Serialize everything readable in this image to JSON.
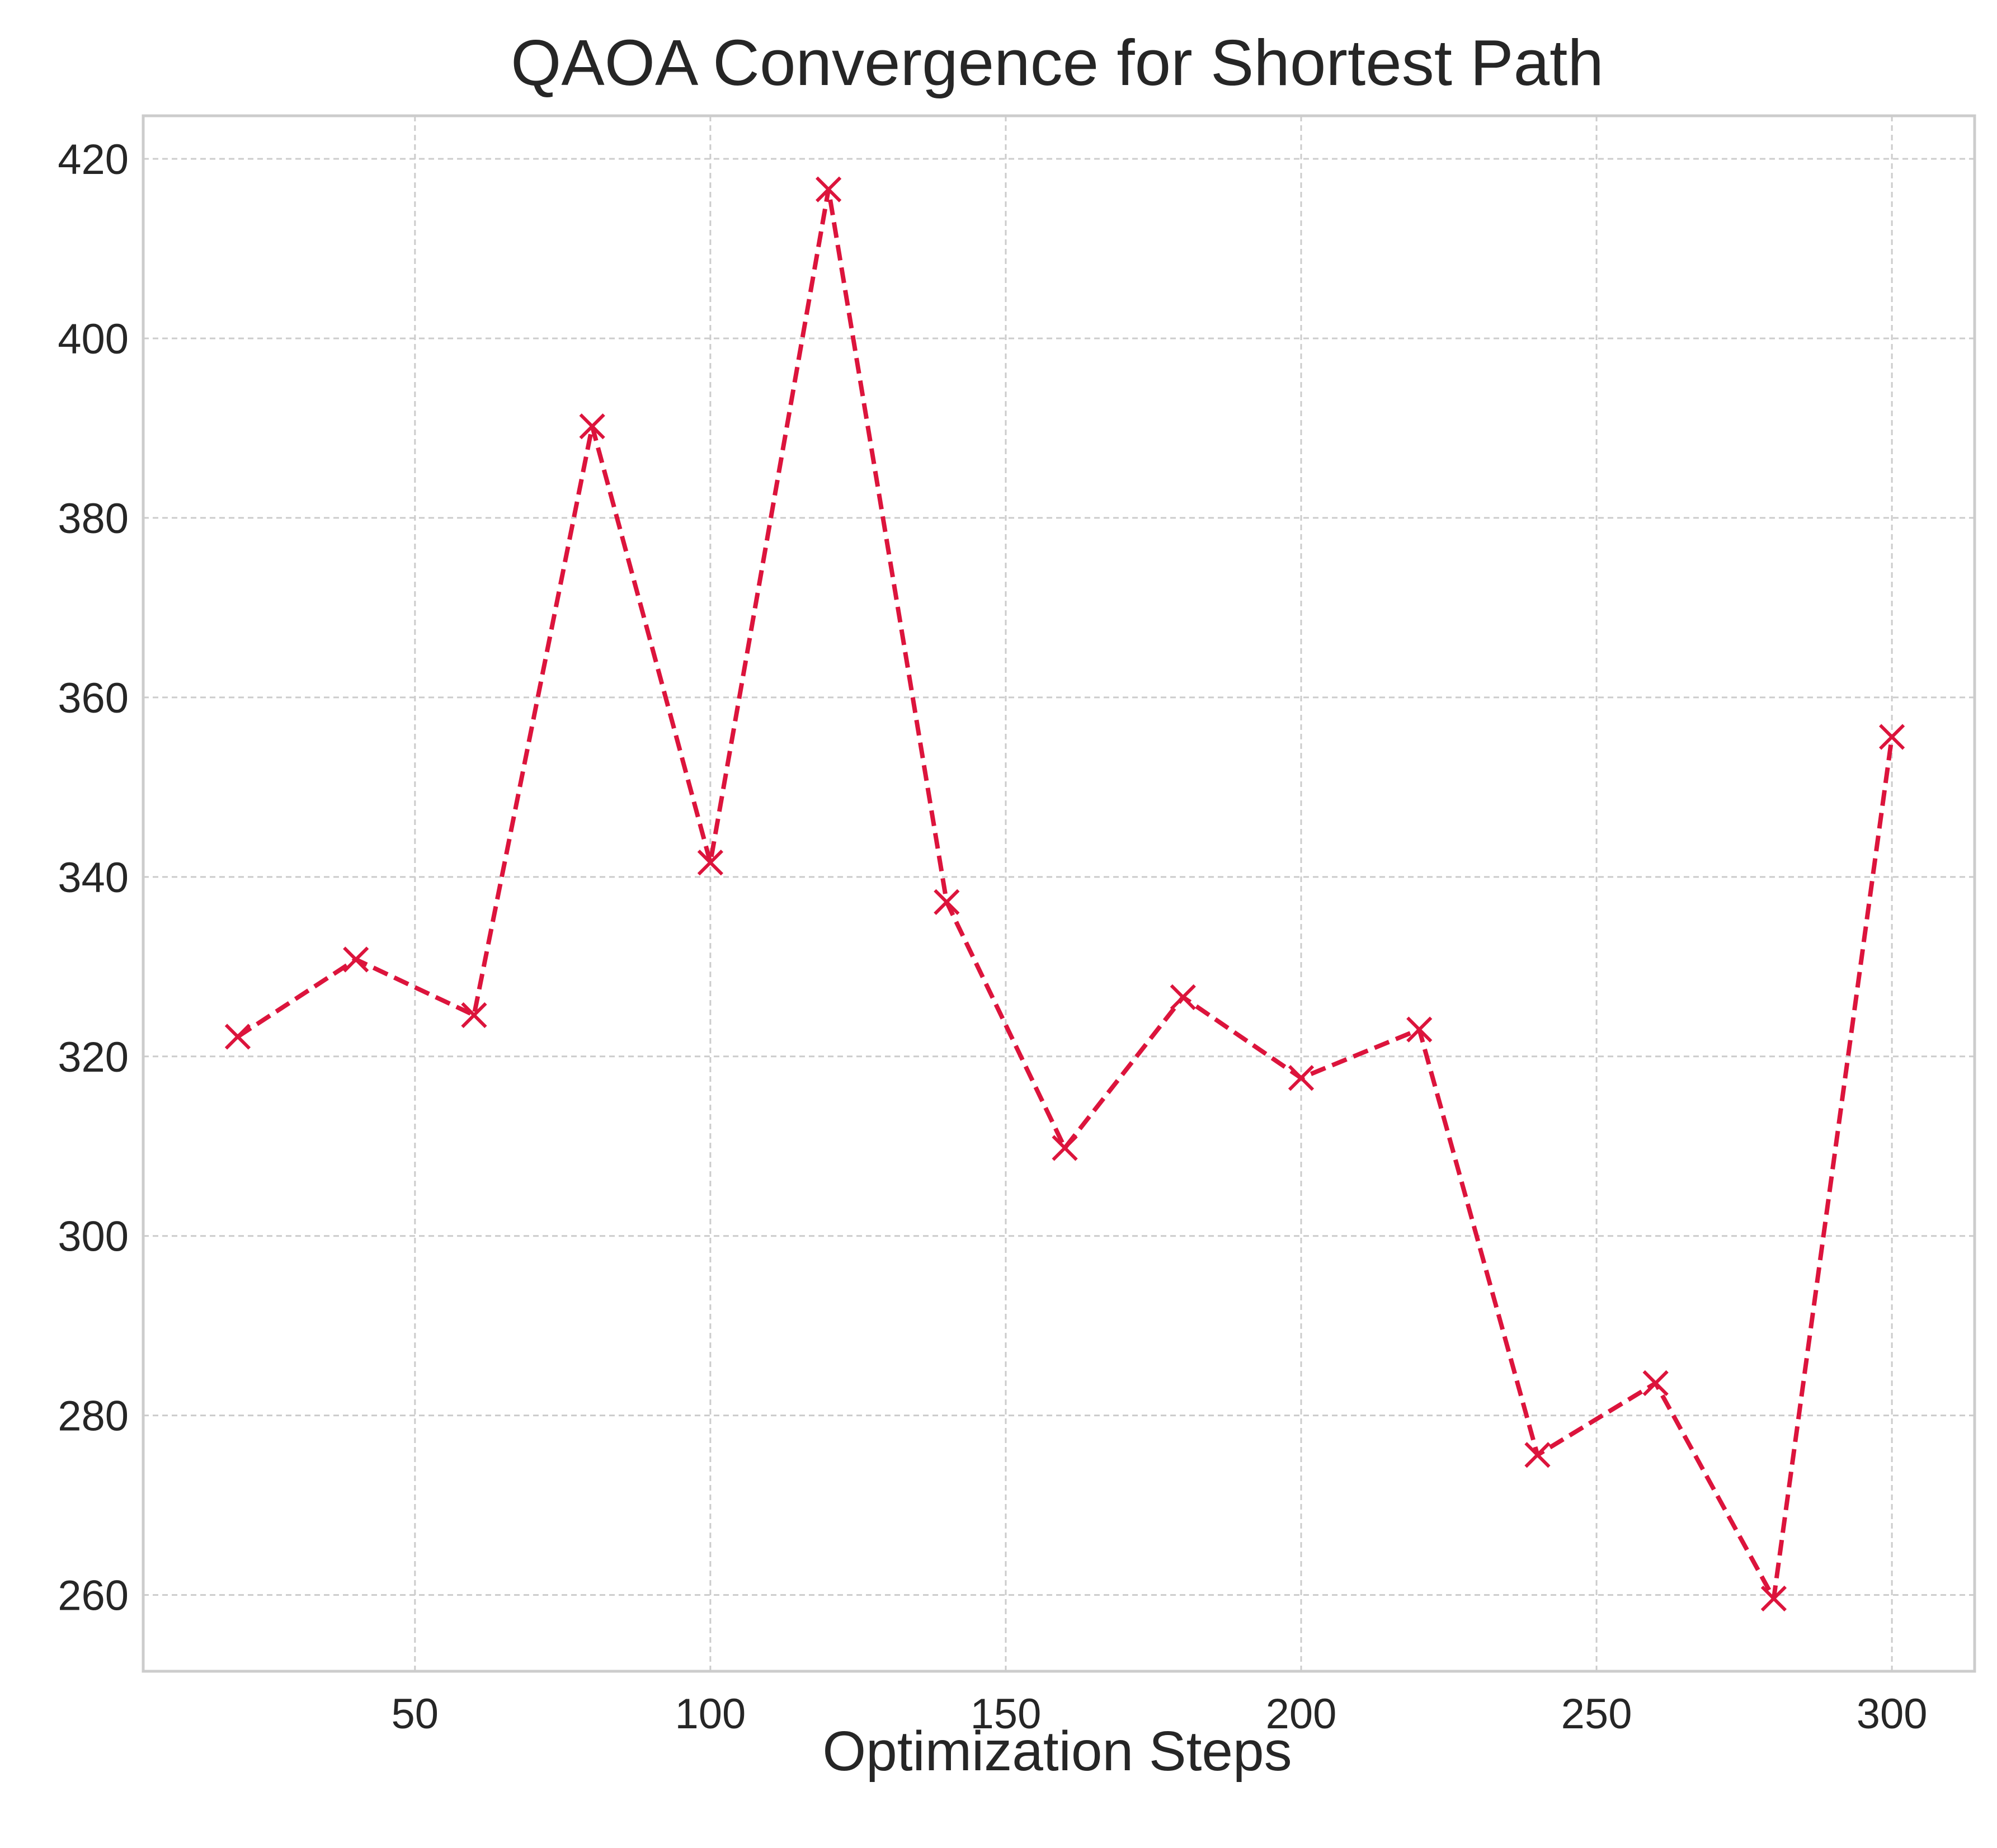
{
  "chart_data": {
    "type": "line",
    "title": "QAOA Convergence for Shortest Path",
    "xlabel": "Optimization Steps",
    "ylabel": "",
    "xlim": [
      4,
      314
    ],
    "ylim": [
      251.5,
      424.8
    ],
    "xticks": [
      50,
      100,
      150,
      200,
      250,
      300
    ],
    "yticks": [
      260,
      280,
      300,
      320,
      340,
      360,
      380,
      400,
      420
    ],
    "grid": true,
    "legend": "none",
    "series": [
      {
        "color": "#dc143c",
        "line_style": "dashed",
        "marker": "x",
        "x": [
          20,
          40,
          60,
          80,
          100,
          120,
          140,
          160,
          180,
          200,
          220,
          240,
          260,
          280,
          300
        ],
        "y": [
          322.2,
          330.8,
          324.6,
          390.2,
          341.6,
          416.6,
          337.2,
          309.8,
          326.6,
          317.6,
          323.0,
          275.6,
          283.6,
          259.6,
          355.6
        ]
      }
    ]
  }
}
